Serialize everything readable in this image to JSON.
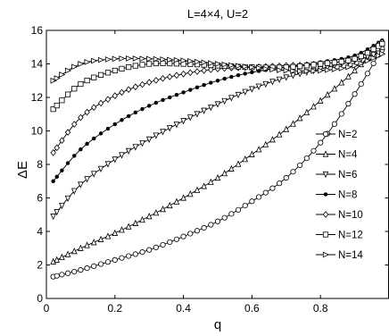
{
  "chart_data": {
    "type": "line",
    "title": "L=4×4, U=2",
    "xlabel": "q",
    "ylabel": "ΔE",
    "xlim": [
      0,
      1
    ],
    "ylim": [
      0,
      16
    ],
    "xticks": [
      0,
      0.2,
      0.4,
      0.6,
      0.8
    ],
    "xtick_labels": [
      "0",
      "0.2",
      "0.4",
      "0.6",
      "0.8"
    ],
    "yticks": [
      0,
      2,
      4,
      6,
      8,
      10,
      12,
      14,
      16
    ],
    "ytick_labels": [
      "0",
      "2",
      "4",
      "6",
      "8",
      "10",
      "12",
      "14",
      "16"
    ],
    "grid": false,
    "legend_position": "right",
    "x": [
      0.02,
      0.1,
      0.2,
      0.3,
      0.4,
      0.5,
      0.6,
      0.7,
      0.8,
      0.9,
      0.98
    ],
    "series": [
      {
        "name": "N=2",
        "marker": "circle",
        "values": [
          1.3,
          1.7,
          2.3,
          2.9,
          3.7,
          4.6,
          5.8,
          7.2,
          9.3,
          12.2,
          14.9
        ]
      },
      {
        "name": "N=4",
        "marker": "triangle-up",
        "values": [
          2.2,
          3.0,
          3.9,
          4.9,
          6.0,
          7.2,
          8.6,
          10.1,
          11.8,
          13.6,
          15.3
        ]
      },
      {
        "name": "N=6",
        "marker": "triangle-down",
        "values": [
          4.9,
          6.8,
          8.3,
          9.5,
          10.6,
          11.6,
          12.5,
          13.2,
          13.7,
          14.2,
          14.7
        ]
      },
      {
        "name": "N=8",
        "marker": "dot",
        "values": [
          7.0,
          8.9,
          10.4,
          11.5,
          12.3,
          13.0,
          13.5,
          13.8,
          14.1,
          14.5,
          15.4
        ]
      },
      {
        "name": "N=10",
        "marker": "diamond",
        "values": [
          8.7,
          10.8,
          12.1,
          12.9,
          13.4,
          13.7,
          13.8,
          13.9,
          14.0,
          14.3,
          15.3
        ]
      },
      {
        "name": "N=12",
        "marker": "square",
        "values": [
          11.3,
          12.8,
          13.6,
          14.0,
          14.0,
          13.9,
          13.8,
          13.8,
          14.0,
          14.3,
          15.2
        ]
      },
      {
        "name": "N=14",
        "marker": "triangle-right",
        "values": [
          13.0,
          14.0,
          14.3,
          14.3,
          14.2,
          14.0,
          13.8,
          13.6,
          13.6,
          13.9,
          14.6
        ]
      }
    ]
  }
}
